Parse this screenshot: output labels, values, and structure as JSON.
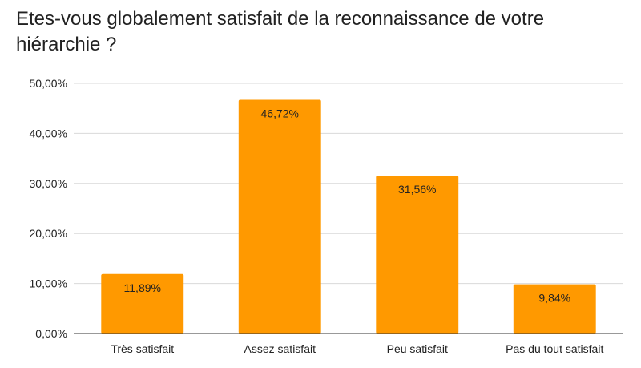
{
  "chart_data": {
    "type": "bar",
    "title": "Etes-vous globalement satisfait de la reconnaissance de votre hiérarchie ?",
    "xlabel": "",
    "ylabel": "",
    "categories": [
      "Très satisfait",
      "Assez satisfait",
      "Peu satisfait",
      "Pas du tout satisfait"
    ],
    "values": [
      11.89,
      46.72,
      31.56,
      9.84
    ],
    "value_labels": [
      "11,89%",
      "46,72%",
      "31,56%",
      "9,84%"
    ],
    "ylim": [
      0,
      50
    ],
    "yticks": [
      0,
      10,
      20,
      30,
      40,
      50
    ],
    "ytick_labels": [
      "0,00%",
      "10,00%",
      "20,00%",
      "30,00%",
      "40,00%",
      "50,00%"
    ],
    "grid": true,
    "legend": "none",
    "colors": {
      "bar": "#FF9900",
      "grid": "#D9D9D9",
      "axis": "#333333",
      "text": "#222222"
    }
  }
}
